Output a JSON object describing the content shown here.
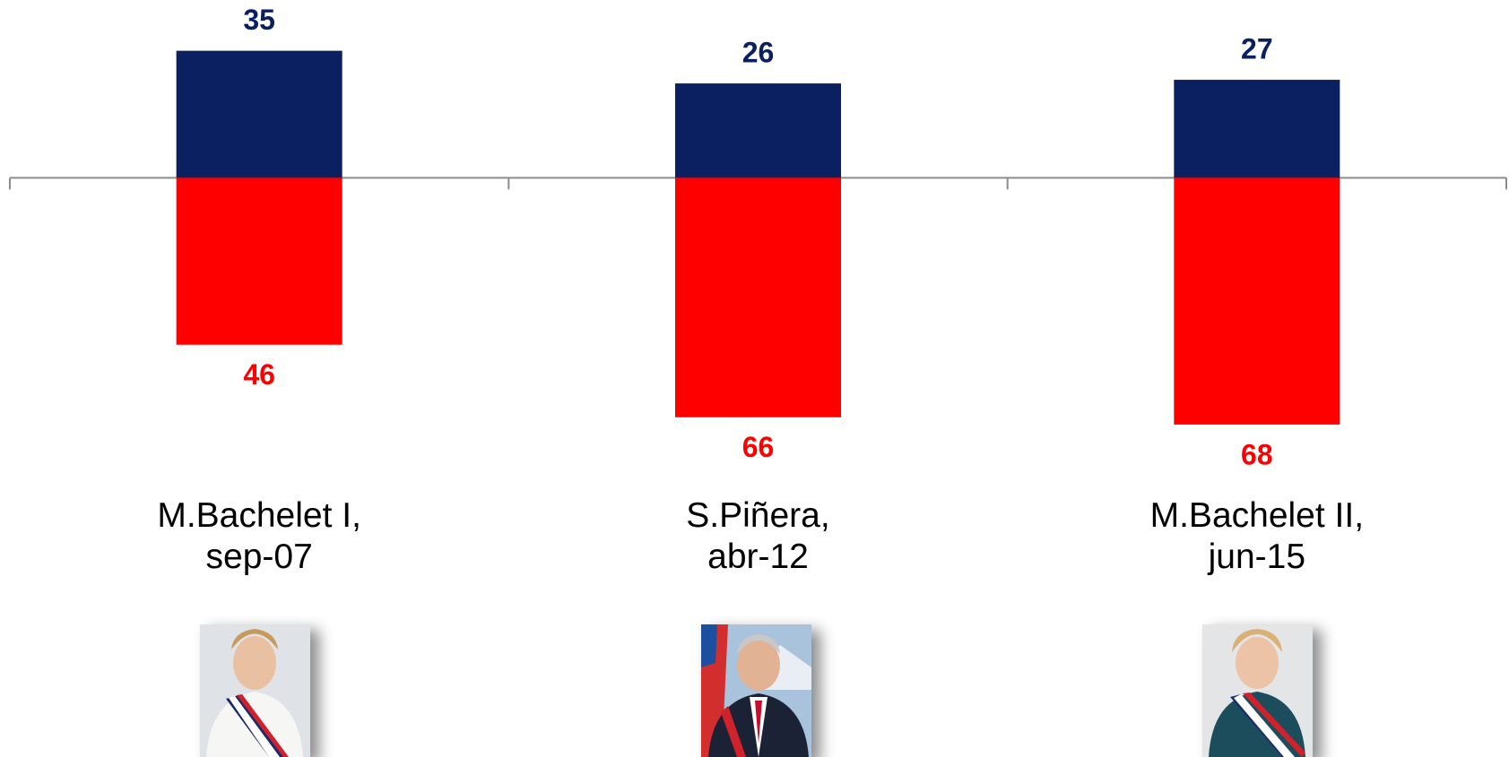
{
  "chart_data": {
    "type": "diverging_bar",
    "categories": [
      "M.Bachelet I,\nsep-07",
      "S.Piñera,\nabr-12",
      "M.Bachelet II,\njun-15"
    ],
    "series": [
      {
        "color": "#0a2060",
        "values": [
          35,
          26,
          27
        ]
      },
      {
        "color": "#ff0000",
        "values": [
          -46,
          -66,
          -68
        ],
        "value_labels": [
          "46",
          "66",
          "68"
        ]
      }
    ],
    "ylim": [
      -80,
      48
    ]
  }
}
